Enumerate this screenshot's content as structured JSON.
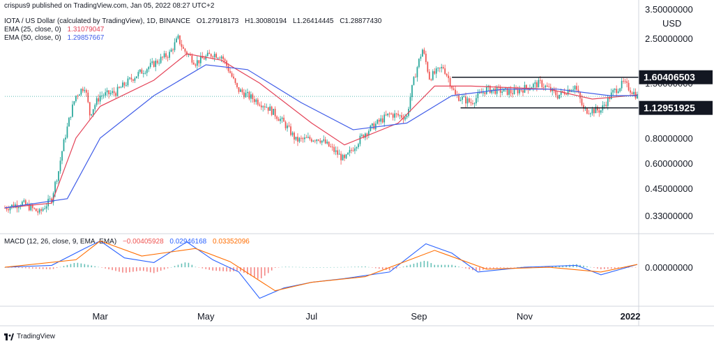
{
  "publisher_line": "crispus9 published on TradingView.com, Jan 05, 2022 08:27 UTC+2",
  "symbol_line": {
    "title": "IOTA / US Dollar (calculated by TradingView), 1D, BINANCE",
    "o_label": "O",
    "o": "1.27918173",
    "h_label": "H",
    "h": "1.30080194",
    "l_label": "L",
    "l": "1.26414445",
    "c_label": "C",
    "c": "1.28877430"
  },
  "ema25": {
    "label": "EMA (25, close, 0)",
    "value": "1.31079047",
    "color": "#e44257"
  },
  "ema50": {
    "label": "EMA (50, close, 0)",
    "value": "1.29857667",
    "color": "#3f5ce8"
  },
  "macd_legend": {
    "label": "MACD (12, 26, close, 9, EMA, EMA)",
    "hist": "−0.00405928",
    "macd": "0.02946168",
    "signal": "0.03352096"
  },
  "currency": "USD",
  "brand": "TradingView",
  "colors": {
    "up": "#26a69a",
    "down": "#ef5350",
    "macd_line": "#2962ff",
    "signal_line": "#ff6d00",
    "level_box": "#131722"
  },
  "chart_data": [
    {
      "type": "candlestick",
      "scale": "log",
      "ylim": [
        0.27,
        3.7
      ],
      "y_ticks": [
        "3.50000000",
        "2.50000000",
        "1.50000000",
        "0.80000000",
        "0.60000000",
        "0.45000000",
        "0.33000000"
      ],
      "y_tick_values": [
        3.5,
        2.5,
        1.5,
        0.8,
        0.6,
        0.45,
        0.33
      ],
      "x_ticks": [
        "Mar",
        "May",
        "Jul",
        "Sep",
        "Nov",
        "2022"
      ],
      "x_tick_dates": [
        "2021-03-01",
        "2021-05-01",
        "2021-07-01",
        "2021-09-01",
        "2021-11-01",
        "2022-01-01"
      ],
      "date_range": [
        "2021-01-05",
        "2022-01-05"
      ],
      "levels": [
        {
          "label": "1.60406503",
          "value": 1.60406503,
          "from": "2021-09-20",
          "to": "2022-01-05"
        },
        {
          "label": "1.12951925",
          "value": 1.12951925,
          "from": "2021-09-25",
          "to": "2022-01-05"
        }
      ],
      "last_price": 1.2887743,
      "close_path": [
        [
          "2021-01-05",
          0.36
        ],
        [
          "2021-01-15",
          0.38
        ],
        [
          "2021-01-25",
          0.34
        ],
        [
          "2021-02-01",
          0.4
        ],
        [
          "2021-02-05",
          0.55
        ],
        [
          "2021-02-10",
          0.9
        ],
        [
          "2021-02-15",
          1.3
        ],
        [
          "2021-02-20",
          1.45
        ],
        [
          "2021-02-23",
          1.05
        ],
        [
          "2021-03-01",
          1.3
        ],
        [
          "2021-03-10",
          1.35
        ],
        [
          "2021-03-20",
          1.6
        ],
        [
          "2021-03-31",
          1.85
        ],
        [
          "2021-04-10",
          2.1
        ],
        [
          "2021-04-15",
          2.5
        ],
        [
          "2021-04-18",
          2.2
        ],
        [
          "2021-04-25",
          1.9
        ],
        [
          "2021-05-05",
          2.1
        ],
        [
          "2021-05-10",
          2.05
        ],
        [
          "2021-05-19",
          1.4
        ],
        [
          "2021-05-25",
          1.3
        ],
        [
          "2021-06-05",
          1.15
        ],
        [
          "2021-06-15",
          0.95
        ],
        [
          "2021-06-22",
          0.78
        ],
        [
          "2021-07-05",
          0.8
        ],
        [
          "2021-07-20",
          0.62
        ],
        [
          "2021-08-01",
          0.85
        ],
        [
          "2021-08-15",
          1.05
        ],
        [
          "2021-08-25",
          1.02
        ],
        [
          "2021-09-03",
          2.2
        ],
        [
          "2021-09-07",
          1.6
        ],
        [
          "2021-09-15",
          1.8
        ],
        [
          "2021-09-22",
          1.3
        ],
        [
          "2021-10-01",
          1.2
        ],
        [
          "2021-10-10",
          1.4
        ],
        [
          "2021-10-25",
          1.35
        ],
        [
          "2021-11-10",
          1.5
        ],
        [
          "2021-11-20",
          1.3
        ],
        [
          "2021-11-30",
          1.45
        ],
        [
          "2021-12-05",
          1.1
        ],
        [
          "2021-12-15",
          1.1
        ],
        [
          "2021-12-22",
          1.35
        ],
        [
          "2021-12-28",
          1.5
        ],
        [
          "2022-01-05",
          1.29
        ]
      ],
      "ema25_path": [
        [
          "2021-01-05",
          0.36
        ],
        [
          "2021-02-01",
          0.38
        ],
        [
          "2021-02-15",
          0.8
        ],
        [
          "2021-03-01",
          1.15
        ],
        [
          "2021-04-01",
          1.55
        ],
        [
          "2021-04-20",
          2.1
        ],
        [
          "2021-05-10",
          1.95
        ],
        [
          "2021-06-01",
          1.5
        ],
        [
          "2021-07-01",
          0.95
        ],
        [
          "2021-07-20",
          0.74
        ],
        [
          "2021-08-20",
          0.95
        ],
        [
          "2021-09-10",
          1.45
        ],
        [
          "2021-10-01",
          1.45
        ],
        [
          "2021-11-15",
          1.4
        ],
        [
          "2021-12-10",
          1.25
        ],
        [
          "2022-01-05",
          1.31
        ]
      ],
      "ema50_path": [
        [
          "2021-01-05",
          0.36
        ],
        [
          "2021-02-10",
          0.4
        ],
        [
          "2021-03-01",
          0.8
        ],
        [
          "2021-04-01",
          1.3
        ],
        [
          "2021-05-01",
          1.85
        ],
        [
          "2021-05-25",
          1.75
        ],
        [
          "2021-06-25",
          1.2
        ],
        [
          "2021-07-25",
          0.88
        ],
        [
          "2021-08-25",
          0.95
        ],
        [
          "2021-09-20",
          1.3
        ],
        [
          "2021-10-20",
          1.4
        ],
        [
          "2021-11-20",
          1.4
        ],
        [
          "2021-12-20",
          1.3
        ],
        [
          "2022-01-05",
          1.3
        ]
      ]
    },
    {
      "type": "line",
      "name": "MACD",
      "y_ticks": [
        "0.00000000"
      ],
      "y_tick_values": [
        0
      ],
      "ylim": [
        -0.4,
        0.35
      ],
      "macd_path": [
        [
          "2021-01-05",
          0.0
        ],
        [
          "2021-02-01",
          0.02
        ],
        [
          "2021-02-20",
          0.2
        ],
        [
          "2021-03-01",
          0.28
        ],
        [
          "2021-03-15",
          0.1
        ],
        [
          "2021-04-01",
          0.05
        ],
        [
          "2021-04-20",
          0.27
        ],
        [
          "2021-05-05",
          0.08
        ],
        [
          "2021-05-20",
          -0.05
        ],
        [
          "2021-06-01",
          -0.33
        ],
        [
          "2021-06-15",
          -0.22
        ],
        [
          "2021-07-01",
          -0.16
        ],
        [
          "2021-07-20",
          -0.12
        ],
        [
          "2021-08-15",
          -0.05
        ],
        [
          "2021-09-05",
          0.25
        ],
        [
          "2021-09-20",
          0.15
        ],
        [
          "2021-10-05",
          -0.05
        ],
        [
          "2021-11-01",
          0.0
        ],
        [
          "2021-12-01",
          0.02
        ],
        [
          "2021-12-15",
          -0.08
        ],
        [
          "2022-01-05",
          0.03
        ]
      ],
      "signal_path": [
        [
          "2021-01-05",
          0.0
        ],
        [
          "2021-02-15",
          0.08
        ],
        [
          "2021-03-01",
          0.28
        ],
        [
          "2021-03-25",
          0.12
        ],
        [
          "2021-04-25",
          0.2
        ],
        [
          "2021-05-15",
          0.06
        ],
        [
          "2021-06-10",
          -0.25
        ],
        [
          "2021-07-01",
          -0.16
        ],
        [
          "2021-08-01",
          -0.1
        ],
        [
          "2021-09-10",
          0.18
        ],
        [
          "2021-10-10",
          -0.02
        ],
        [
          "2021-11-15",
          0.0
        ],
        [
          "2021-12-15",
          -0.05
        ],
        [
          "2022-01-05",
          0.03
        ]
      ]
    }
  ]
}
